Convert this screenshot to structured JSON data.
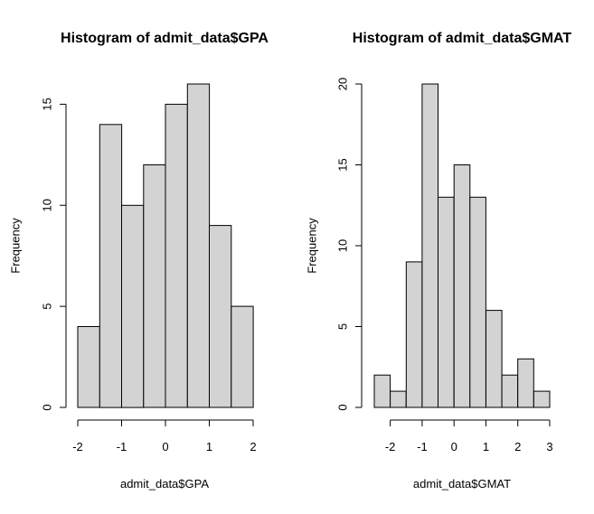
{
  "chart_data": [
    {
      "type": "bar",
      "title": "Histogram of admit_data$GPA",
      "xlabel": "admit_data$GPA",
      "ylabel": "Frequency",
      "bin_edges": [
        -2,
        -1.5,
        -1,
        -0.5,
        0,
        0.5,
        1,
        1.5,
        2
      ],
      "values": [
        4,
        14,
        10,
        12,
        15,
        16,
        9,
        5
      ],
      "xticks": [
        -2,
        -1,
        0,
        1,
        2
      ],
      "yticks": [
        0,
        5,
        10,
        15
      ],
      "xlim": [
        -2,
        2
      ],
      "ylim": [
        0,
        16
      ],
      "fill_color": "#d3d3d3",
      "grid": false
    },
    {
      "type": "bar",
      "title": "Histogram of admit_data$GMAT",
      "xlabel": "admit_data$GMAT",
      "ylabel": "Frequency",
      "bin_edges": [
        -2.5,
        -2,
        -1.5,
        -1,
        -0.5,
        0,
        0.5,
        1,
        1.5,
        2,
        2.5,
        3
      ],
      "values": [
        2,
        1,
        9,
        20,
        13,
        15,
        13,
        6,
        2,
        3,
        1
      ],
      "xticks": [
        -2,
        -1,
        0,
        1,
        2,
        3
      ],
      "yticks": [
        0,
        5,
        10,
        15,
        20
      ],
      "xlim": [
        -2.5,
        3
      ],
      "ylim": [
        0,
        20
      ],
      "fill_color": "#d3d3d3",
      "grid": false
    }
  ]
}
